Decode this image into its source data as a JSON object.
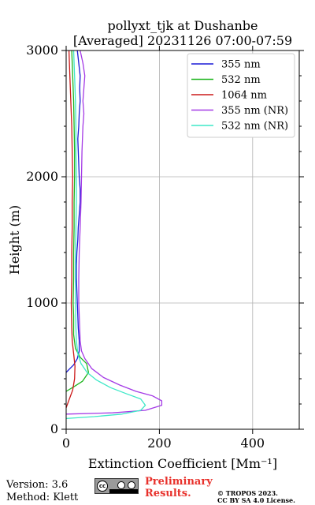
{
  "chart_data": {
    "type": "line",
    "title": "pollyxt_tjk at Dushanbe",
    "subtitle": "[Averaged] 20231126 07:00-07:59",
    "xlabel": "Extinction Coefficient [Mm⁻¹]",
    "ylabel": "Height (m)",
    "xlim": [
      0,
      500
    ],
    "ylim": [
      0,
      3000
    ],
    "xticks": [
      0,
      200,
      400
    ],
    "yticks": [
      0,
      1000,
      2000,
      3000
    ],
    "grid": true,
    "legend_position": "top-right",
    "series": [
      {
        "name": "355 nm",
        "color": "#1a1ad6",
        "points": [
          [
            0,
            450
          ],
          [
            8,
            480
          ],
          [
            16,
            510
          ],
          [
            24,
            560
          ],
          [
            28,
            620
          ],
          [
            28,
            700
          ],
          [
            26,
            800
          ],
          [
            25,
            900
          ],
          [
            24,
            1000
          ],
          [
            23,
            1100
          ],
          [
            22,
            1200
          ],
          [
            22,
            1300
          ],
          [
            23,
            1400
          ],
          [
            25,
            1500
          ],
          [
            26,
            1600
          ],
          [
            28,
            1700
          ],
          [
            30,
            1800
          ],
          [
            30,
            1900
          ],
          [
            28,
            2000
          ],
          [
            27,
            2100
          ],
          [
            26,
            2200
          ],
          [
            25,
            2300
          ],
          [
            27,
            2400
          ],
          [
            28,
            2500
          ],
          [
            30,
            2600
          ],
          [
            29,
            2700
          ],
          [
            30,
            2800
          ],
          [
            27,
            2900
          ],
          [
            24,
            3000
          ]
        ]
      },
      {
        "name": "532 nm",
        "color": "#1db51d",
        "points": [
          [
            0,
            300
          ],
          [
            18,
            340
          ],
          [
            35,
            380
          ],
          [
            48,
            450
          ],
          [
            44,
            520
          ],
          [
            30,
            570
          ],
          [
            20,
            640
          ],
          [
            16,
            750
          ],
          [
            16,
            900
          ],
          [
            15,
            1000
          ],
          [
            16,
            1200
          ],
          [
            16,
            1400
          ],
          [
            17,
            1600
          ],
          [
            17,
            1800
          ],
          [
            18,
            2000
          ],
          [
            18,
            2200
          ],
          [
            17,
            2400
          ],
          [
            16,
            2600
          ],
          [
            14,
            2800
          ],
          [
            12,
            3000
          ]
        ]
      },
      {
        "name": "1064 nm",
        "color": "#cc1a1a",
        "points": [
          [
            0,
            170
          ],
          [
            7,
            240
          ],
          [
            14,
            310
          ],
          [
            18,
            400
          ],
          [
            19,
            500
          ],
          [
            16,
            600
          ],
          [
            13,
            700
          ],
          [
            12,
            800
          ],
          [
            11,
            1000
          ],
          [
            12,
            1200
          ],
          [
            12,
            1400
          ],
          [
            13,
            1600
          ],
          [
            13,
            1800
          ],
          [
            14,
            2000
          ],
          [
            13,
            2200
          ],
          [
            12,
            2400
          ],
          [
            10,
            2600
          ],
          [
            8,
            2800
          ],
          [
            6,
            3000
          ]
        ]
      },
      {
        "name": "355 nm (NR)",
        "color": "#a43ae6",
        "points": [
          [
            0,
            120
          ],
          [
            100,
            130
          ],
          [
            170,
            150
          ],
          [
            205,
            190
          ],
          [
            205,
            225
          ],
          [
            185,
            265
          ],
          [
            150,
            300
          ],
          [
            115,
            350
          ],
          [
            80,
            410
          ],
          [
            55,
            480
          ],
          [
            40,
            560
          ],
          [
            33,
            620
          ],
          [
            30,
            700
          ],
          [
            29,
            800
          ],
          [
            28,
            900
          ],
          [
            27,
            1000
          ],
          [
            27,
            1200
          ],
          [
            28,
            1400
          ],
          [
            30,
            1600
          ],
          [
            32,
            1800
          ],
          [
            33,
            2000
          ],
          [
            34,
            2200
          ],
          [
            36,
            2400
          ],
          [
            38,
            2500
          ],
          [
            36,
            2600
          ],
          [
            38,
            2700
          ],
          [
            40,
            2800
          ],
          [
            36,
            2900
          ],
          [
            30,
            3000
          ]
        ]
      },
      {
        "name": "532 nm (NR)",
        "color": "#3ee8c8",
        "points": [
          [
            0,
            85
          ],
          [
            60,
            100
          ],
          [
            120,
            120
          ],
          [
            160,
            150
          ],
          [
            170,
            190
          ],
          [
            160,
            240
          ],
          [
            130,
            280
          ],
          [
            95,
            330
          ],
          [
            65,
            390
          ],
          [
            45,
            450
          ],
          [
            32,
            520
          ],
          [
            25,
            600
          ],
          [
            22,
            700
          ],
          [
            21,
            800
          ],
          [
            20,
            1000
          ],
          [
            20,
            1200
          ],
          [
            20,
            1400
          ],
          [
            21,
            1600
          ],
          [
            22,
            1800
          ],
          [
            22,
            2000
          ],
          [
            21,
            2200
          ],
          [
            21,
            2400
          ],
          [
            20,
            2600
          ],
          [
            18,
            2800
          ],
          [
            16,
            3000
          ]
        ]
      }
    ]
  },
  "footer": {
    "version": "Version: 3.6",
    "method": "Method: Klett",
    "prelim_line1": "Preliminary",
    "prelim_line2": "Results.",
    "copyright_line1": "© TROPOS 2023.",
    "copyright_line2": "CC BY SA 4.0 License.",
    "cc_text": "cc"
  }
}
